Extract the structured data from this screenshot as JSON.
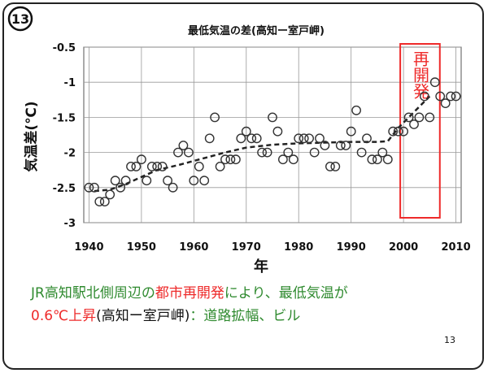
{
  "slide_badge": "13",
  "page_number": "13",
  "caption": {
    "line1": [
      {
        "text": "JR高知駅北側周辺の",
        "color": "green"
      },
      {
        "text": "都市再開発",
        "color": "red"
      },
      {
        "text": "により、最低気温が",
        "color": "green"
      }
    ],
    "line2": [
      {
        "text": "0.6℃上昇",
        "color": "red"
      },
      {
        "text": "(高知ー室戸岬)",
        "color": "black"
      },
      {
        "text": "：道路拡幅、ビル",
        "color": "green"
      }
    ]
  },
  "chart_data": {
    "type": "scatter",
    "title": "最低気温の差(高知ー室戸岬)",
    "xlabel": "年",
    "ylabel": "気温差(℃)",
    "xlim": [
      1939,
      2011
    ],
    "ylim": [
      -3,
      -0.5
    ],
    "xticks": [
      1940,
      1950,
      1960,
      1970,
      1980,
      1990,
      2000,
      2010
    ],
    "yticks": [
      -0.5,
      -1,
      -1.5,
      -2,
      -2.5,
      -3
    ],
    "grid": true,
    "annotation": {
      "text": "再開発",
      "color": "#ee2a2a",
      "x_range": [
        2000,
        2006
      ]
    },
    "series": [
      {
        "marker": "circle",
        "x": [
          1940,
          1941,
          1942,
          1943,
          1944,
          1945,
          1946,
          1947,
          1948,
          1949,
          1950,
          1951,
          1952,
          1953,
          1954,
          1955,
          1956,
          1957,
          1958,
          1959,
          1960,
          1961,
          1962,
          1963,
          1964,
          1965,
          1966,
          1967,
          1968,
          1969,
          1970,
          1971,
          1972,
          1973,
          1974,
          1975,
          1976,
          1977,
          1978,
          1979,
          1980,
          1981,
          1982,
          1983,
          1984,
          1985,
          1986,
          1987,
          1988,
          1989,
          1990,
          1991,
          1992,
          1993,
          1994,
          1995,
          1996,
          1997,
          1998,
          1999,
          2000,
          2001,
          2002,
          2003,
          2004,
          2005,
          2006,
          2007,
          2008,
          2009,
          2010
        ],
        "y": [
          -2.5,
          -2.5,
          -2.7,
          -2.7,
          -2.6,
          -2.4,
          -2.5,
          -2.4,
          -2.2,
          -2.2,
          -2.1,
          -2.4,
          -2.2,
          -2.2,
          -2.2,
          -2.4,
          -2.5,
          -2.0,
          -1.9,
          -2.0,
          -2.4,
          -2.2,
          -2.4,
          -1.8,
          -1.5,
          -2.2,
          -2.1,
          -2.1,
          -2.1,
          -1.8,
          -1.7,
          -1.8,
          -1.8,
          -2.0,
          -2.0,
          -1.5,
          -1.7,
          -2.1,
          -2.0,
          -2.1,
          -1.8,
          -1.8,
          -1.8,
          -2.0,
          -1.8,
          -1.9,
          -2.2,
          -2.2,
          -1.9,
          -1.9,
          -1.7,
          -1.4,
          -2.0,
          -1.8,
          -2.1,
          -2.1,
          -2.0,
          -2.1,
          -1.7,
          -1.7,
          -1.7,
          -1.5,
          -1.6,
          -1.5,
          -1.2,
          -1.5,
          -1.0,
          -1.2,
          -1.3,
          -1.2,
          -1.2
        ]
      },
      {
        "style": "dashed",
        "x": [
          1941,
          1944,
          1947,
          1950,
          1953,
          1957,
          1960,
          1963,
          1966,
          1970,
          1975,
          1980,
          1985,
          1990,
          1995,
          1997,
          1999,
          2001,
          2003,
          2005
        ],
        "y": [
          -2.55,
          -2.53,
          -2.45,
          -2.35,
          -2.25,
          -2.18,
          -2.12,
          -2.06,
          -2.0,
          -1.93,
          -1.89,
          -1.87,
          -1.86,
          -1.85,
          -1.85,
          -1.84,
          -1.65,
          -1.5,
          -1.35,
          -1.2
        ]
      }
    ]
  }
}
